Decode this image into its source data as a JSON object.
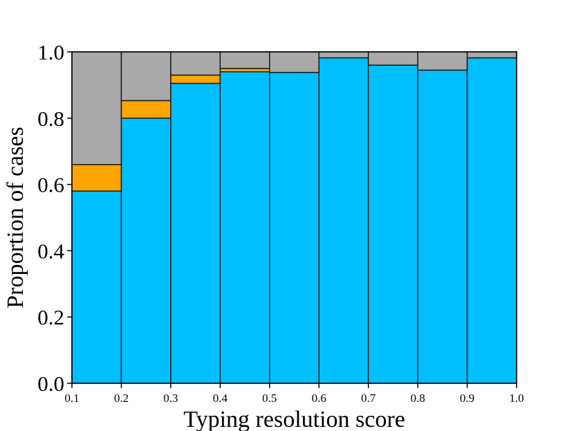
{
  "chart_data": {
    "type": "bar",
    "stacked": true,
    "xlabel": "Typing resolution score",
    "ylabel": "Proportion of cases",
    "xlim": [
      0.1,
      1.0
    ],
    "ylim": [
      0.0,
      1.0
    ],
    "x_ticks": [
      "0.1",
      "0.2",
      "0.3",
      "0.4",
      "0.5",
      "0.6",
      "0.7",
      "0.8",
      "0.9",
      "1.0"
    ],
    "y_ticks": [
      "0.0",
      "0.2",
      "0.4",
      "0.6",
      "0.8",
      "1.0"
    ],
    "bins": [
      [
        0.1,
        0.2
      ],
      [
        0.2,
        0.3
      ],
      [
        0.3,
        0.4
      ],
      [
        0.4,
        0.5
      ],
      [
        0.5,
        0.6
      ],
      [
        0.6,
        0.7
      ],
      [
        0.7,
        0.8
      ],
      [
        0.8,
        0.9
      ],
      [
        0.9,
        1.0
      ]
    ],
    "series": [
      {
        "color": "#00bfff",
        "values": [
          0.58,
          0.8,
          0.905,
          0.94,
          0.938,
          0.982,
          0.96,
          0.945,
          0.982
        ]
      },
      {
        "color": "#ffa500",
        "values": [
          0.08,
          0.053,
          0.025,
          0.01,
          0.0,
          0.0,
          0.0,
          0.0,
          0.0
        ]
      },
      {
        "color": "#a9a9a9",
        "values": [
          0.34,
          0.147,
          0.07,
          0.05,
          0.062,
          0.018,
          0.04,
          0.055,
          0.018
        ]
      }
    ],
    "grid": false,
    "legend": "none"
  }
}
